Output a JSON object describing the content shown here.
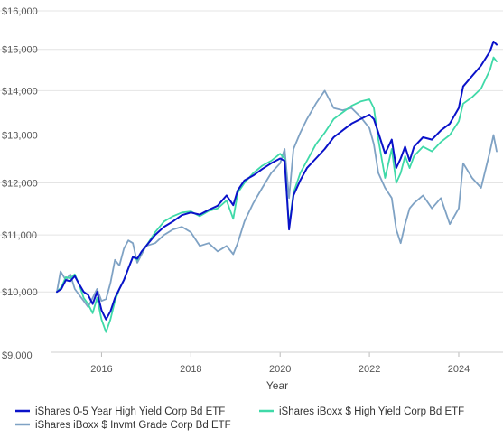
{
  "chart_data": {
    "type": "line",
    "title": "",
    "xlabel": "Year",
    "ylabel": "",
    "y_scale": "log",
    "ylim": [
      9000,
      16000
    ],
    "xlim": [
      2015.0,
      2024.85
    ],
    "grid": "horizontal",
    "legend_position": "bottom",
    "y_ticks": [
      9000,
      10000,
      11000,
      12000,
      13000,
      14000,
      15000,
      16000
    ],
    "y_tick_labels": [
      "$9,000",
      "$10,000",
      "$11,000",
      "$12,000",
      "$13,000",
      "$14,000",
      "$15,000",
      "$16,000"
    ],
    "x_ticks": [
      2016,
      2018,
      2020,
      2022,
      2024
    ],
    "x_tick_labels": [
      "2016",
      "2018",
      "2020",
      "2022",
      "2024"
    ],
    "series": [
      {
        "name": "iShares 0-5 Year High Yield Corp Bd ETF",
        "color": "#0a12c9",
        "points": [
          [
            2015.0,
            10000
          ],
          [
            2015.1,
            10050
          ],
          [
            2015.2,
            10200
          ],
          [
            2015.3,
            10180
          ],
          [
            2015.4,
            10270
          ],
          [
            2015.5,
            10130
          ],
          [
            2015.6,
            10000
          ],
          [
            2015.7,
            9950
          ],
          [
            2015.8,
            9800
          ],
          [
            2015.9,
            10000
          ],
          [
            2016.0,
            9700
          ],
          [
            2016.1,
            9550
          ],
          [
            2016.2,
            9680
          ],
          [
            2016.3,
            9900
          ],
          [
            2016.4,
            10050
          ],
          [
            2016.5,
            10200
          ],
          [
            2016.6,
            10400
          ],
          [
            2016.7,
            10600
          ],
          [
            2016.8,
            10570
          ],
          [
            2016.9,
            10700
          ],
          [
            2017.0,
            10800
          ],
          [
            2017.2,
            11000
          ],
          [
            2017.4,
            11150
          ],
          [
            2017.6,
            11250
          ],
          [
            2017.8,
            11370
          ],
          [
            2018.0,
            11420
          ],
          [
            2018.2,
            11380
          ],
          [
            2018.4,
            11470
          ],
          [
            2018.6,
            11550
          ],
          [
            2018.8,
            11750
          ],
          [
            2018.95,
            11560
          ],
          [
            2019.05,
            11850
          ],
          [
            2019.2,
            12050
          ],
          [
            2019.4,
            12150
          ],
          [
            2019.6,
            12280
          ],
          [
            2019.8,
            12400
          ],
          [
            2020.0,
            12500
          ],
          [
            2020.1,
            12450
          ],
          [
            2020.2,
            11100
          ],
          [
            2020.3,
            11750
          ],
          [
            2020.45,
            12050
          ],
          [
            2020.6,
            12300
          ],
          [
            2020.8,
            12500
          ],
          [
            2021.0,
            12700
          ],
          [
            2021.2,
            12950
          ],
          [
            2021.4,
            13100
          ],
          [
            2021.6,
            13250
          ],
          [
            2021.8,
            13350
          ],
          [
            2022.0,
            13450
          ],
          [
            2022.1,
            13350
          ],
          [
            2022.2,
            13050
          ],
          [
            2022.35,
            12600
          ],
          [
            2022.5,
            12900
          ],
          [
            2022.6,
            12300
          ],
          [
            2022.7,
            12500
          ],
          [
            2022.8,
            12750
          ],
          [
            2022.9,
            12450
          ],
          [
            2023.0,
            12750
          ],
          [
            2023.2,
            12950
          ],
          [
            2023.4,
            12900
          ],
          [
            2023.6,
            13100
          ],
          [
            2023.8,
            13250
          ],
          [
            2024.0,
            13600
          ],
          [
            2024.1,
            14100
          ],
          [
            2024.3,
            14350
          ],
          [
            2024.5,
            14600
          ],
          [
            2024.7,
            14950
          ],
          [
            2024.78,
            15200
          ],
          [
            2024.85,
            15120
          ]
        ]
      },
      {
        "name": "iShares iBoxx $ High Yield Corp Bd ETF",
        "color": "#3fd9a8",
        "points": [
          [
            2015.0,
            10000
          ],
          [
            2015.1,
            10080
          ],
          [
            2015.2,
            10250
          ],
          [
            2015.3,
            10230
          ],
          [
            2015.4,
            10300
          ],
          [
            2015.5,
            10120
          ],
          [
            2015.6,
            9900
          ],
          [
            2015.7,
            9800
          ],
          [
            2015.8,
            9650
          ],
          [
            2015.9,
            9900
          ],
          [
            2016.0,
            9550
          ],
          [
            2016.1,
            9350
          ],
          [
            2016.2,
            9550
          ],
          [
            2016.3,
            9850
          ],
          [
            2016.4,
            10050
          ],
          [
            2016.5,
            10200
          ],
          [
            2016.6,
            10400
          ],
          [
            2016.7,
            10600
          ],
          [
            2016.8,
            10550
          ],
          [
            2016.9,
            10700
          ],
          [
            2017.0,
            10800
          ],
          [
            2017.2,
            11050
          ],
          [
            2017.4,
            11250
          ],
          [
            2017.6,
            11350
          ],
          [
            2017.8,
            11420
          ],
          [
            2018.0,
            11440
          ],
          [
            2018.2,
            11350
          ],
          [
            2018.4,
            11450
          ],
          [
            2018.6,
            11500
          ],
          [
            2018.8,
            11650
          ],
          [
            2018.95,
            11300
          ],
          [
            2019.05,
            11800
          ],
          [
            2019.2,
            12000
          ],
          [
            2019.4,
            12200
          ],
          [
            2019.6,
            12350
          ],
          [
            2019.8,
            12450
          ],
          [
            2020.0,
            12600
          ],
          [
            2020.1,
            12500
          ],
          [
            2020.2,
            11150
          ],
          [
            2020.3,
            11800
          ],
          [
            2020.45,
            12200
          ],
          [
            2020.6,
            12450
          ],
          [
            2020.8,
            12800
          ],
          [
            2021.0,
            13050
          ],
          [
            2021.2,
            13350
          ],
          [
            2021.4,
            13500
          ],
          [
            2021.6,
            13650
          ],
          [
            2021.8,
            13750
          ],
          [
            2022.0,
            13800
          ],
          [
            2022.1,
            13600
          ],
          [
            2022.2,
            12900
          ],
          [
            2022.35,
            12100
          ],
          [
            2022.5,
            12700
          ],
          [
            2022.6,
            12000
          ],
          [
            2022.7,
            12200
          ],
          [
            2022.8,
            12550
          ],
          [
            2022.9,
            12300
          ],
          [
            2023.0,
            12550
          ],
          [
            2023.2,
            12750
          ],
          [
            2023.4,
            12650
          ],
          [
            2023.6,
            12850
          ],
          [
            2023.8,
            13000
          ],
          [
            2024.0,
            13300
          ],
          [
            2024.1,
            13700
          ],
          [
            2024.3,
            13850
          ],
          [
            2024.5,
            14050
          ],
          [
            2024.7,
            14500
          ],
          [
            2024.78,
            14800
          ],
          [
            2024.85,
            14700
          ]
        ]
      },
      {
        "name": "iShares iBoxx $ Invmt Grade Corp Bd ETF",
        "color": "#7fa2c4",
        "points": [
          [
            2015.0,
            10000
          ],
          [
            2015.08,
            10350
          ],
          [
            2015.2,
            10200
          ],
          [
            2015.3,
            10300
          ],
          [
            2015.4,
            10050
          ],
          [
            2015.5,
            9950
          ],
          [
            2015.6,
            9850
          ],
          [
            2015.7,
            9750
          ],
          [
            2015.8,
            9900
          ],
          [
            2015.9,
            10050
          ],
          [
            2016.0,
            9850
          ],
          [
            2016.1,
            9880
          ],
          [
            2016.2,
            10150
          ],
          [
            2016.3,
            10550
          ],
          [
            2016.4,
            10450
          ],
          [
            2016.5,
            10750
          ],
          [
            2016.6,
            10900
          ],
          [
            2016.7,
            10850
          ],
          [
            2016.8,
            10500
          ],
          [
            2016.9,
            10650
          ],
          [
            2017.0,
            10800
          ],
          [
            2017.2,
            10850
          ],
          [
            2017.4,
            11000
          ],
          [
            2017.6,
            11100
          ],
          [
            2017.8,
            11150
          ],
          [
            2018.0,
            11050
          ],
          [
            2018.2,
            10800
          ],
          [
            2018.4,
            10850
          ],
          [
            2018.6,
            10700
          ],
          [
            2018.8,
            10800
          ],
          [
            2018.95,
            10650
          ],
          [
            2019.05,
            10850
          ],
          [
            2019.2,
            11250
          ],
          [
            2019.4,
            11600
          ],
          [
            2019.6,
            11900
          ],
          [
            2019.8,
            12200
          ],
          [
            2020.0,
            12400
          ],
          [
            2020.1,
            12700
          ],
          [
            2020.2,
            11700
          ],
          [
            2020.3,
            12700
          ],
          [
            2020.45,
            13050
          ],
          [
            2020.6,
            13350
          ],
          [
            2020.8,
            13700
          ],
          [
            2021.0,
            14000
          ],
          [
            2021.2,
            13600
          ],
          [
            2021.4,
            13550
          ],
          [
            2021.6,
            13600
          ],
          [
            2021.8,
            13400
          ],
          [
            2022.0,
            13150
          ],
          [
            2022.1,
            12800
          ],
          [
            2022.2,
            12200
          ],
          [
            2022.35,
            11900
          ],
          [
            2022.5,
            11700
          ],
          [
            2022.6,
            11100
          ],
          [
            2022.7,
            10850
          ],
          [
            2022.8,
            11200
          ],
          [
            2022.9,
            11500
          ],
          [
            2023.0,
            11600
          ],
          [
            2023.2,
            11750
          ],
          [
            2023.4,
            11500
          ],
          [
            2023.6,
            11700
          ],
          [
            2023.8,
            11200
          ],
          [
            2024.0,
            11500
          ],
          [
            2024.1,
            12400
          ],
          [
            2024.3,
            12100
          ],
          [
            2024.5,
            11900
          ],
          [
            2024.7,
            12650
          ],
          [
            2024.78,
            13000
          ],
          [
            2024.85,
            12650
          ]
        ]
      }
    ]
  }
}
